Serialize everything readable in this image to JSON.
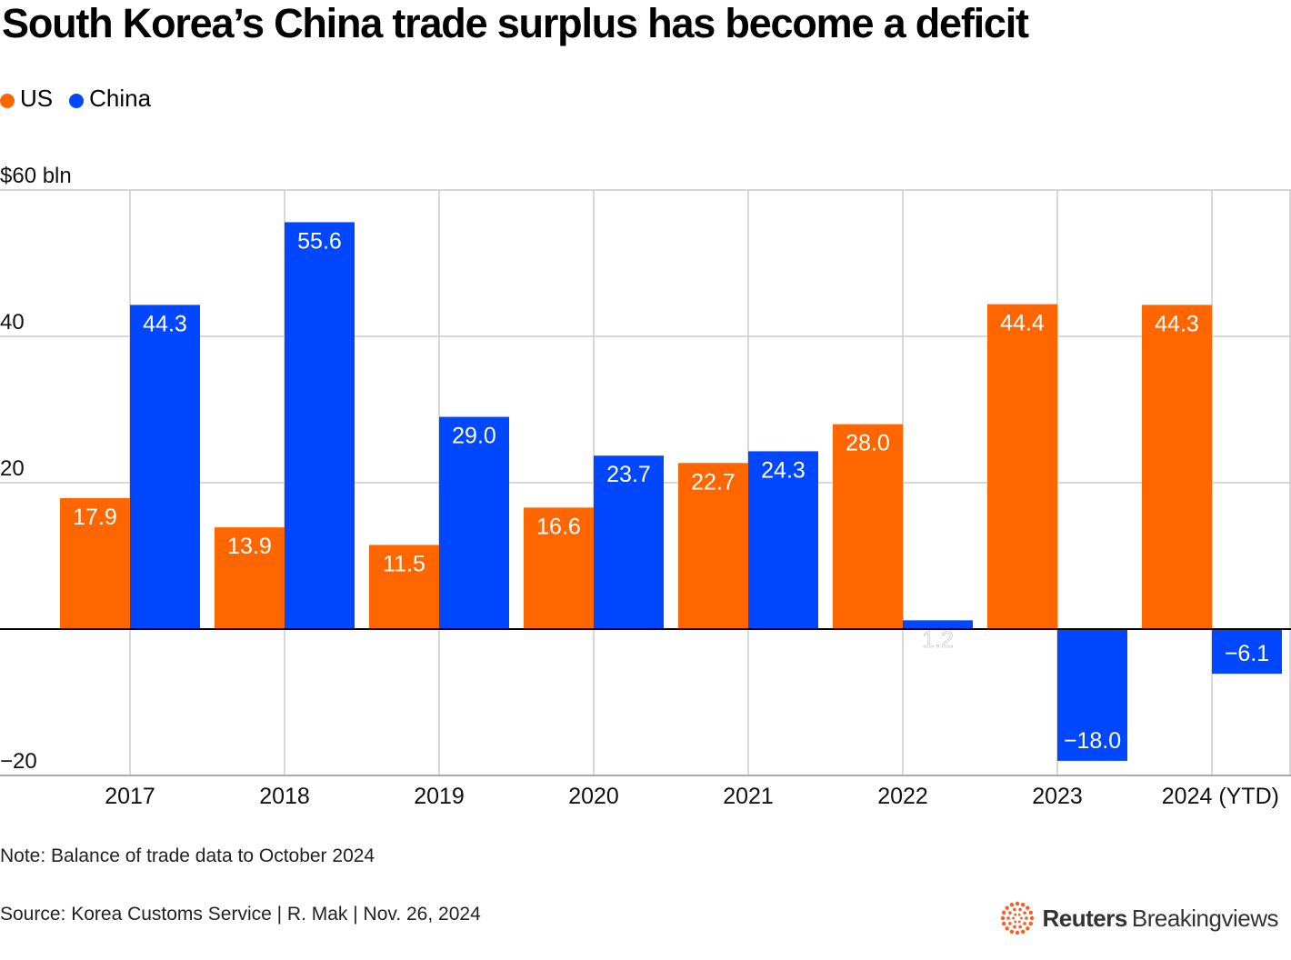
{
  "header": {
    "title": "South Korea’s China trade surplus has become a deficit"
  },
  "legend": [
    {
      "label": "US",
      "color": "#ff6600"
    },
    {
      "label": "China",
      "color": "#0047ff"
    }
  ],
  "footer": {
    "note": "Note: Balance of trade data to October 2024",
    "source": "Source: Korea Customs Service | R. Mak | Nov. 26, 2024",
    "brand_bold": "Reuters",
    "brand_light": "Breakingviews"
  },
  "chart_data": {
    "type": "bar",
    "title": "South Korea’s China trade surplus has become a deficit",
    "categories": [
      "2017",
      "2018",
      "2019",
      "2020",
      "2021",
      "2022",
      "2023",
      "2024 (YTD)"
    ],
    "series": [
      {
        "name": "US",
        "color": "#ff6600",
        "values": [
          17.9,
          13.9,
          11.5,
          16.6,
          22.7,
          28.0,
          44.4,
          44.3
        ],
        "labels": [
          "17.9",
          "13.9",
          "11.5",
          "16.6",
          "22.7",
          "28.0",
          "44.4",
          "44.3"
        ]
      },
      {
        "name": "China",
        "color": "#0047ff",
        "values": [
          44.3,
          55.6,
          29.0,
          23.7,
          24.3,
          1.2,
          -18.0,
          -6.1
        ],
        "labels": [
          "44.3",
          "55.6",
          "29.0",
          "23.7",
          "24.3",
          "1.2",
          "−18.0",
          "−6.1"
        ]
      }
    ],
    "ylim": [
      -20,
      60
    ],
    "yticks": [
      {
        "value": 60,
        "label": "$60 bln"
      },
      {
        "value": 40,
        "label": "40"
      },
      {
        "value": 20,
        "label": "20"
      },
      {
        "value": -20,
        "label": "−20"
      }
    ],
    "ylabel": "",
    "xlabel": "",
    "grid": true,
    "legend_position": "top-left"
  }
}
